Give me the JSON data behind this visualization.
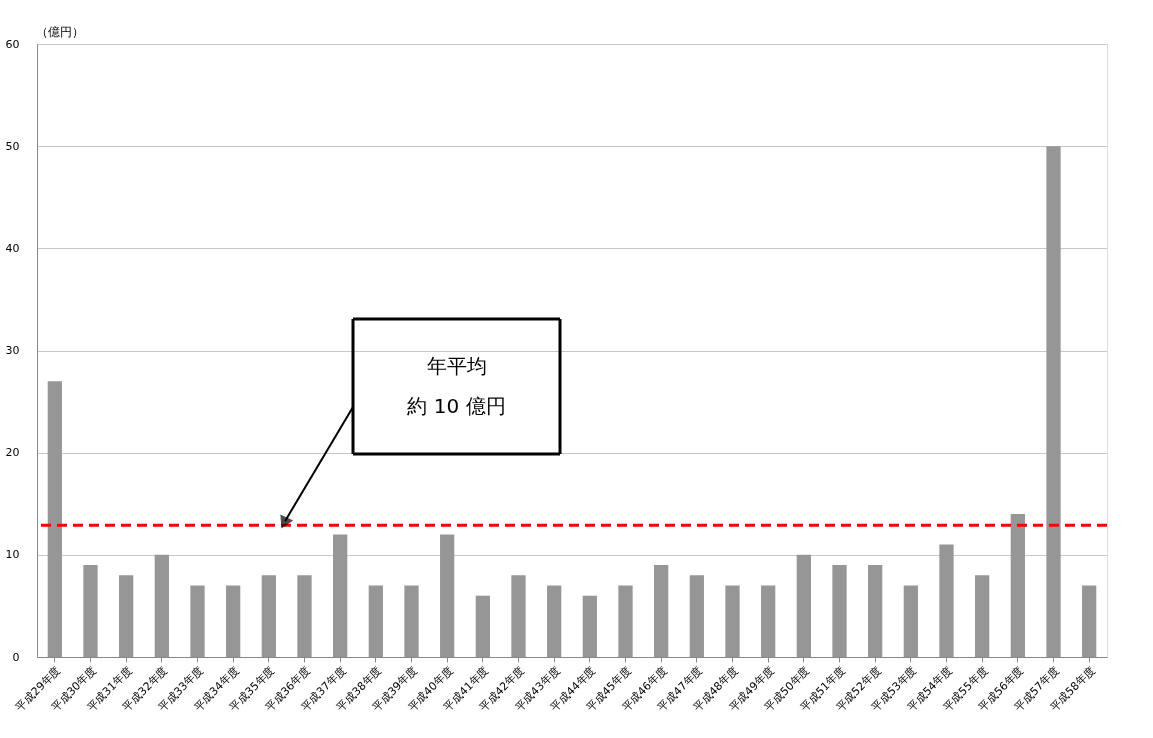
{
  "chart_data": {
    "type": "bar",
    "ylabel": "（億円）",
    "categories": [
      "平成29年度",
      "平成30年度",
      "平成31年度",
      "平成32年度",
      "平成33年度",
      "平成34年度",
      "平成35年度",
      "平成36年度",
      "平成37年度",
      "平成38年度",
      "平成39年度",
      "平成40年度",
      "平成41年度",
      "平成42年度",
      "平成43年度",
      "平成44年度",
      "平成45年度",
      "平成46年度",
      "平成47年度",
      "平成48年度",
      "平成49年度",
      "平成50年度",
      "平成51年度",
      "平成52年度",
      "平成53年度",
      "平成54年度",
      "平成55年度",
      "平成56年度",
      "平成57年度",
      "平成58年度"
    ],
    "values": [
      27,
      9,
      8,
      10,
      7,
      7,
      8,
      8,
      12,
      7,
      7,
      12,
      6,
      8,
      7,
      6,
      7,
      9,
      8,
      7,
      7,
      10,
      9,
      9,
      7,
      11,
      8,
      14,
      50,
      7
    ],
    "color": "#969696",
    "ylim": [
      0,
      60
    ],
    "yticks": [
      0,
      10,
      20,
      30,
      40,
      50,
      60
    ],
    "grid": "y",
    "ref_lines": [
      {
        "axis": "y",
        "value": 12.9,
        "color": "#ff0000",
        "line_style": "dashed"
      }
    ],
    "annotations": [
      "年平均",
      "約 10 億円"
    ]
  }
}
